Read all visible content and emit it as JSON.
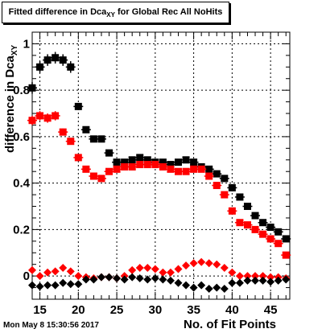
{
  "title": {
    "prefix": "Fitted difference in Dca",
    "subscript": "XY",
    "suffix": " for Global Rec All NoHits"
  },
  "date_stamp": "Mon May  8 15:30:56 2017",
  "chart_data": {
    "type": "scatter",
    "xlabel": "No. of Fit Points",
    "ylabel": "difference in Dca",
    "ylabel_subscript": "XY",
    "xlim": [
      14,
      47.5
    ],
    "ylim": [
      -0.1,
      1.05
    ],
    "x_ticks": [
      15,
      20,
      25,
      30,
      35,
      40,
      45
    ],
    "y_ticks": [
      0,
      0.2,
      0.4,
      0.6,
      0.8,
      1
    ],
    "y_tick_labels": [
      "0",
      "0.2",
      "0.4",
      "0.6",
      "0.8",
      "1"
    ],
    "grid": true,
    "legend": "none",
    "x": [
      14,
      15,
      16,
      17,
      18,
      19,
      20,
      21,
      22,
      23,
      24,
      25,
      26,
      27,
      28,
      29,
      30,
      31,
      32,
      33,
      34,
      35,
      36,
      37,
      38,
      39,
      40,
      41,
      42,
      43,
      44,
      45,
      46,
      47
    ],
    "series": [
      {
        "marker": "square",
        "color": "#000000",
        "values": [
          0.81,
          0.9,
          0.93,
          0.94,
          0.93,
          0.9,
          0.73,
          0.63,
          0.59,
          0.59,
          0.53,
          0.49,
          0.49,
          0.5,
          0.51,
          0.5,
          0.49,
          0.49,
          0.48,
          0.49,
          0.5,
          0.49,
          0.47,
          0.46,
          0.44,
          0.42,
          0.38,
          0.34,
          0.3,
          0.26,
          0.23,
          0.21,
          0.19,
          0.16
        ],
        "errors": [
          0.025,
          0.025,
          0.025,
          0.025,
          0.025,
          0.025,
          0.015,
          0.012,
          0.01,
          0.01,
          0.01,
          0.008,
          0.008,
          0.008,
          0.008,
          0.008,
          0.008,
          0.008,
          0.008,
          0.008,
          0.008,
          0.008,
          0.008,
          0.008,
          0.008,
          0.008,
          0.008,
          0.008,
          0.008,
          0.008,
          0.008,
          0.008,
          0.008,
          0.008
        ]
      },
      {
        "marker": "square",
        "color": "#ff0000",
        "values": [
          0.67,
          0.69,
          0.68,
          0.69,
          0.62,
          0.58,
          0.51,
          0.46,
          0.43,
          0.42,
          0.45,
          0.46,
          0.47,
          0.47,
          0.48,
          0.48,
          0.48,
          0.47,
          0.46,
          0.45,
          0.45,
          0.46,
          0.46,
          0.43,
          0.39,
          0.35,
          0.28,
          0.23,
          0.22,
          0.2,
          0.18,
          0.16,
          0.14,
          0.09
        ],
        "errors": [
          0.02,
          0.02,
          0.02,
          0.02,
          0.015,
          0.012,
          0.01,
          0.01,
          0.008,
          0.008,
          0.008,
          0.008,
          0.008,
          0.008,
          0.008,
          0.008,
          0.008,
          0.008,
          0.008,
          0.008,
          0.008,
          0.008,
          0.008,
          0.008,
          0.008,
          0.008,
          0.008,
          0.008,
          0.008,
          0.008,
          0.008,
          0.008,
          0.008,
          0.008
        ]
      },
      {
        "marker": "diamond",
        "color": "#ff0000",
        "values": [
          0.025,
          0.0,
          0.015,
          0.02,
          0.035,
          0.02,
          0.0,
          -0.005,
          -0.01,
          -0.005,
          -0.005,
          -0.01,
          0.0,
          0.025,
          0.035,
          0.035,
          0.03,
          0.015,
          0.015,
          0.03,
          0.045,
          0.055,
          0.06,
          0.055,
          0.05,
          0.035,
          0.015,
          0.0,
          0.0,
          0.0,
          0.0,
          -0.005,
          -0.005,
          -0.01
        ]
      },
      {
        "marker": "diamond",
        "color": "#000000",
        "values": [
          -0.04,
          -0.045,
          -0.04,
          -0.04,
          -0.03,
          -0.035,
          -0.035,
          -0.015,
          -0.015,
          -0.005,
          -0.005,
          -0.01,
          -0.015,
          -0.005,
          -0.01,
          -0.015,
          -0.01,
          -0.015,
          -0.02,
          -0.03,
          -0.04,
          -0.05,
          -0.04,
          -0.055,
          -0.05,
          -0.055,
          -0.03,
          -0.03,
          -0.02,
          -0.02,
          -0.02,
          -0.025,
          -0.02,
          -0.015
        ]
      }
    ]
  }
}
